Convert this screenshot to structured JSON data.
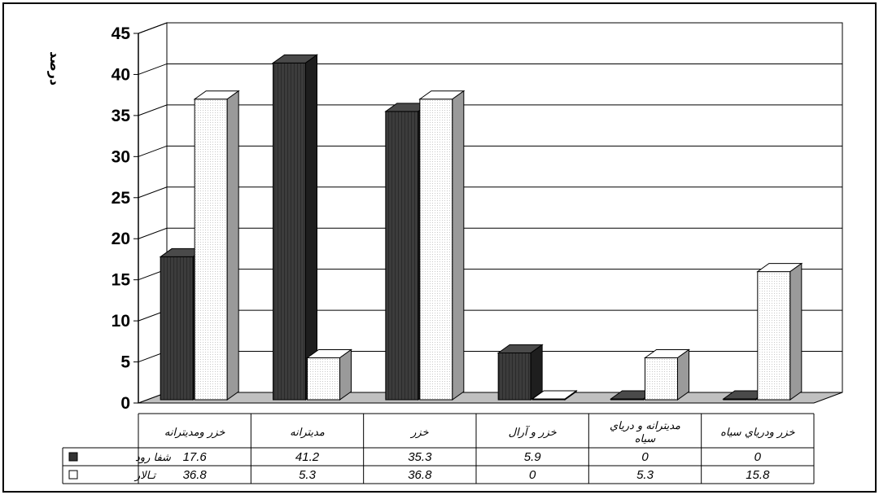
{
  "chart_data": {
    "type": "bar",
    "title": "",
    "xlabel": "",
    "ylabel": "درصد",
    "ylim": [
      0,
      45
    ],
    "yticks": [
      "0",
      "5",
      "10",
      "15",
      "20",
      "25",
      "30",
      "35",
      "40",
      "45"
    ],
    "grid": true,
    "legend": "left-table",
    "categories": [
      "خزر ومديترانه",
      "مديترانه",
      "خزر",
      "خزر و آرال",
      "مديترانه و درياي سياه",
      "خزر ودرياي سياه"
    ],
    "series": [
      {
        "name": "شفا رود",
        "values": [
          17.6,
          41.2,
          35.3,
          5.9,
          0,
          0
        ],
        "labels": [
          "17.6",
          "41.2",
          "35.3",
          "5.9",
          "0",
          "0"
        ],
        "color": "#3a3a3a"
      },
      {
        "name": "تـالار",
        "values": [
          36.8,
          5.3,
          36.8,
          0,
          5.3,
          15.8
        ],
        "labels": [
          "36.8",
          "5.3",
          "36.8",
          "0",
          "5.3",
          "15.8"
        ],
        "color": "#ffffff"
      }
    ]
  }
}
